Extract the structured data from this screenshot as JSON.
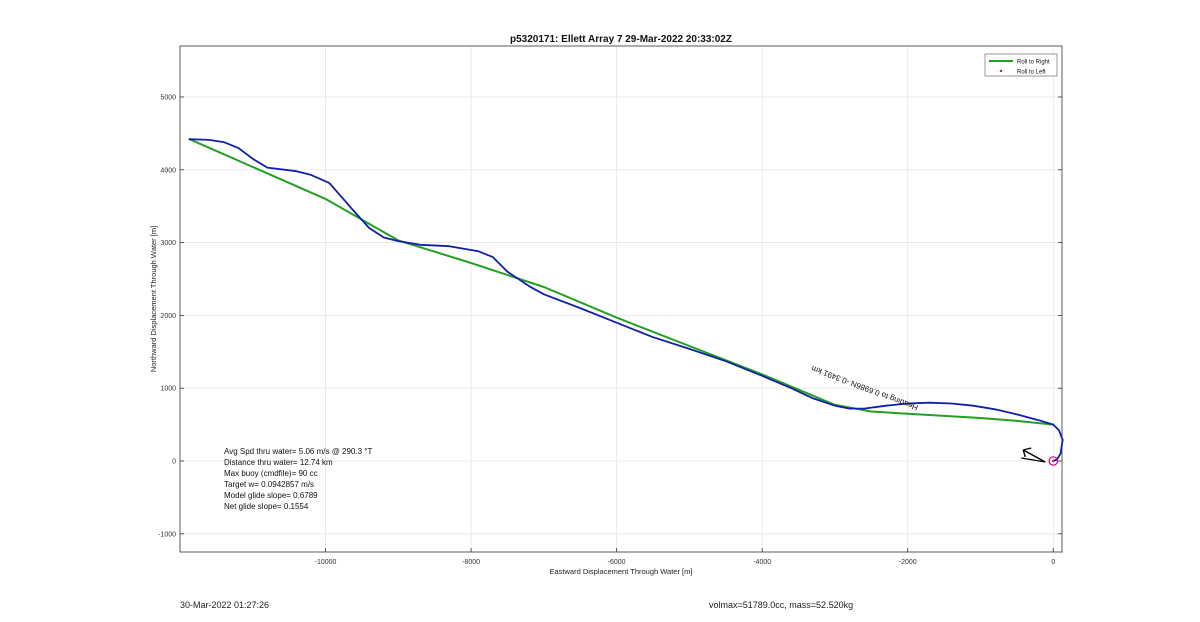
{
  "chart_data": {
    "type": "line",
    "title": "p5320171: Ellett Array 7 29-Mar-2022 20:33:02Z",
    "xlabel": "Eastward Displacement Through Water [m]",
    "ylabel": "Northward Displacement Through Water [m]",
    "xlim": [
      -12000,
      120
    ],
    "ylim": [
      -1250,
      5700
    ],
    "xticks": [
      -10000,
      -8000,
      -6000,
      -4000,
      -2000,
      0
    ],
    "yticks": [
      -1000,
      0,
      1000,
      2000,
      3000,
      4000,
      5000
    ],
    "grid": true,
    "legend_position": "top-right",
    "colors": {
      "roll_right": "#22a022",
      "roll_left": "#d6007a",
      "track": "#1020a8",
      "arrow": "#000000"
    },
    "legend": [
      {
        "label": "Roll to Right",
        "style": "line",
        "color": "#22a022"
      },
      {
        "label": "Roll to Left",
        "style": "marker",
        "color": "#d6007a"
      }
    ],
    "series": [
      {
        "name": "Roll to Right",
        "x": [
          -11870,
          -10000,
          -9000,
          -8000,
          -7000,
          -6000,
          -5000,
          -4000,
          -3000,
          -2500,
          -2000,
          -1000,
          -500,
          0
        ],
        "y": [
          4420,
          3600,
          3030,
          2720,
          2390,
          1970,
          1580,
          1190,
          770,
          680,
          650,
          590,
          550,
          500
        ]
      },
      {
        "x": [
          -11870,
          -11600,
          -11400,
          -11200,
          -11000,
          -10800,
          -10400,
          -10200,
          -9950,
          -9800,
          -9600,
          -9400,
          -9200,
          -9000,
          -8700,
          -8300,
          -7900,
          -7700,
          -7500,
          -7200,
          -7000,
          -6500,
          -6000,
          -5500,
          -5000,
          -4500,
          -4000,
          -3600,
          -3300,
          -3000,
          -2800,
          -2600,
          -2300,
          -2000,
          -1700,
          -1400,
          -1100,
          -800,
          -500,
          -200,
          0,
          80,
          130,
          100,
          50,
          0
        ],
        "y": [
          4420,
          4410,
          4380,
          4300,
          4150,
          4030,
          3980,
          3930,
          3820,
          3650,
          3420,
          3200,
          3070,
          3020,
          2970,
          2950,
          2880,
          2800,
          2600,
          2400,
          2290,
          2100,
          1900,
          1700,
          1540,
          1370,
          1170,
          1000,
          860,
          760,
          720,
          720,
          760,
          790,
          800,
          790,
          760,
          710,
          640,
          560,
          500,
          420,
          290,
          100,
          20,
          0
        ]
      }
    ],
    "markers": [
      {
        "label": "Roll to Left",
        "x": 0,
        "y": 0
      }
    ],
    "annotations": {
      "path_label": "Heading to 0.6986N -0.3491 km",
      "stats": [
        "Avg Spd thru water=  5.06 m/s @ 290.3 °T",
        "Distance thru water= 12.74 km",
        "Max buoy (cmdfile)= 90 cc",
        "Target w= 0.0942857 m/s",
        "Model glide slope= 0.6789",
        "Net glide slope= 0.1554"
      ]
    }
  },
  "footer": {
    "timestamp": "30-Mar-2022 01:27:26",
    "info": "volmax=51789.0cc, mass=52.520kg"
  }
}
